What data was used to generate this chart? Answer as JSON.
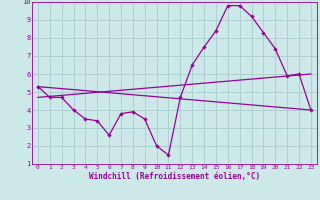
{
  "xlabel": "Windchill (Refroidissement éolien,°C)",
  "background_color": "#cce8e8",
  "grid_color": "#aacccc",
  "line_color": "#990099",
  "xlim": [
    -0.5,
    23.5
  ],
  "ylim": [
    1,
    10
  ],
  "xticks": [
    0,
    1,
    2,
    3,
    4,
    5,
    6,
    7,
    8,
    9,
    10,
    11,
    12,
    13,
    14,
    15,
    16,
    17,
    18,
    19,
    20,
    21,
    22,
    23
  ],
  "yticks": [
    1,
    2,
    3,
    4,
    5,
    6,
    7,
    8,
    9,
    10
  ],
  "line1_x": [
    0,
    1,
    2,
    3,
    4,
    5,
    6,
    7,
    8,
    9,
    10,
    11,
    12,
    13,
    14,
    15,
    16,
    17,
    18,
    19,
    20,
    21,
    22,
    23
  ],
  "line1_y": [
    5.3,
    4.7,
    4.7,
    4.0,
    3.5,
    3.4,
    2.6,
    3.8,
    3.9,
    3.5,
    2.0,
    1.5,
    4.7,
    6.5,
    7.5,
    8.4,
    9.8,
    9.8,
    9.2,
    8.3,
    7.4,
    5.9,
    6.0,
    4.0
  ],
  "line2_x": [
    0,
    23
  ],
  "line2_y": [
    5.3,
    4.0
  ],
  "line3_x": [
    0,
    23
  ],
  "line3_y": [
    4.7,
    6.0
  ],
  "tick_fontsize": 4.5,
  "xlabel_fontsize": 5.5,
  "marker_size": 2.2,
  "line_width": 0.9
}
